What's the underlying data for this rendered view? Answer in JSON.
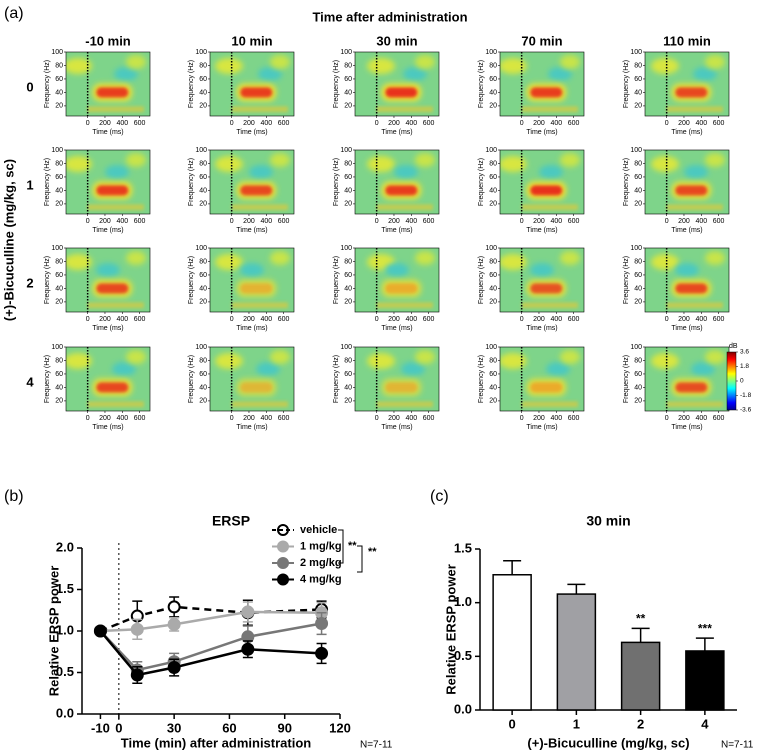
{
  "panel_a": {
    "label": "(a)",
    "title": "Time after administration",
    "columns": [
      "-10 min",
      "10 min",
      "30 min",
      "70 min",
      "110 min"
    ],
    "rows": [
      "0",
      "1",
      "2",
      "4"
    ],
    "row_axis_label": "(+)-Bicuculline (mg/kg, sc)",
    "y_label": "Frequency (Hz)",
    "x_label": "Time (ms)",
    "ylim": [
      5,
      100
    ],
    "yticks": [
      20,
      40,
      60,
      80,
      100
    ],
    "xlim": [
      -250,
      720
    ],
    "xticks": [
      0,
      200,
      400,
      600
    ],
    "colorbar": {
      "label": "dB",
      "lim": [
        -3.6,
        3.6
      ],
      "ticks": [
        3.6,
        1.8,
        0,
        -1.8,
        -3.6
      ]
    }
  },
  "chart_data": [
    {
      "type": "line",
      "panel_label": "(b)",
      "title": "ERSP",
      "x_label": "Time (min) after administration",
      "y_label": "Relative ERSP power",
      "note": "N=7-11",
      "x": [
        -10,
        10,
        30,
        70,
        110
      ],
      "series": [
        {
          "name": "vehicle",
          "color": "#000000",
          "marker_fill": "#ffffff",
          "dashed": true,
          "values": [
            1.0,
            1.18,
            1.29,
            1.22,
            1.26
          ],
          "errors": [
            0,
            0.18,
            0.12,
            0.15,
            0.1
          ]
        },
        {
          "name": "1 mg/kg",
          "color": "#aaaaaa",
          "marker_fill": "#aaaaaa",
          "dashed": false,
          "values": [
            1.0,
            1.02,
            1.08,
            1.23,
            1.22
          ],
          "errors": [
            0,
            0.12,
            0.08,
            0.12,
            0.12
          ]
        },
        {
          "name": "2 mg/kg",
          "color": "#777777",
          "marker_fill": "#777777",
          "dashed": false,
          "values": [
            1.0,
            0.53,
            0.63,
            0.93,
            1.09
          ],
          "errors": [
            0,
            0.1,
            0.1,
            0.13,
            0.13
          ]
        },
        {
          "name": "4 mg/kg",
          "color": "#000000",
          "marker_fill": "#000000",
          "dashed": false,
          "values": [
            1.0,
            0.47,
            0.56,
            0.78,
            0.73
          ],
          "errors": [
            0,
            0.1,
            0.1,
            0.1,
            0.12
          ]
        }
      ],
      "xlim": [
        -20,
        120
      ],
      "xticks": [
        -10,
        0,
        30,
        60,
        90,
        120
      ],
      "ylim": [
        0,
        2
      ],
      "yticks": [
        {
          "value": 0,
          "label": "0.0"
        },
        {
          "value": 0.5,
          "label": "0.5"
        },
        {
          "value": 1,
          "label": "1.0"
        },
        {
          "value": 1.5,
          "label": "1.5"
        },
        {
          "value": 2,
          "label": "2.0"
        }
      ],
      "annotations": [
        "**",
        "**"
      ]
    },
    {
      "type": "bar",
      "panel_label": "(c)",
      "title": "30 min",
      "x_label": "(+)-Bicuculline (mg/kg, sc)",
      "y_label": "Relative ERSP power",
      "note": "N=7-11",
      "categories": [
        "0",
        "1",
        "2",
        "4"
      ],
      "values": [
        1.26,
        1.08,
        0.63,
        0.55
      ],
      "errors": [
        0.13,
        0.09,
        0.13,
        0.12
      ],
      "colors": [
        "#ffffff",
        "#a0a0a4",
        "#707070",
        "#000000"
      ],
      "significance": [
        null,
        null,
        "**",
        "***"
      ],
      "ylim": [
        0,
        1.5
      ],
      "yticks": [
        {
          "value": 0,
          "label": "0.0"
        },
        {
          "value": 0.5,
          "label": "0.5"
        },
        {
          "value": 1,
          "label": "1.0"
        },
        {
          "value": 1.5,
          "label": "1.5"
        }
      ]
    }
  ]
}
